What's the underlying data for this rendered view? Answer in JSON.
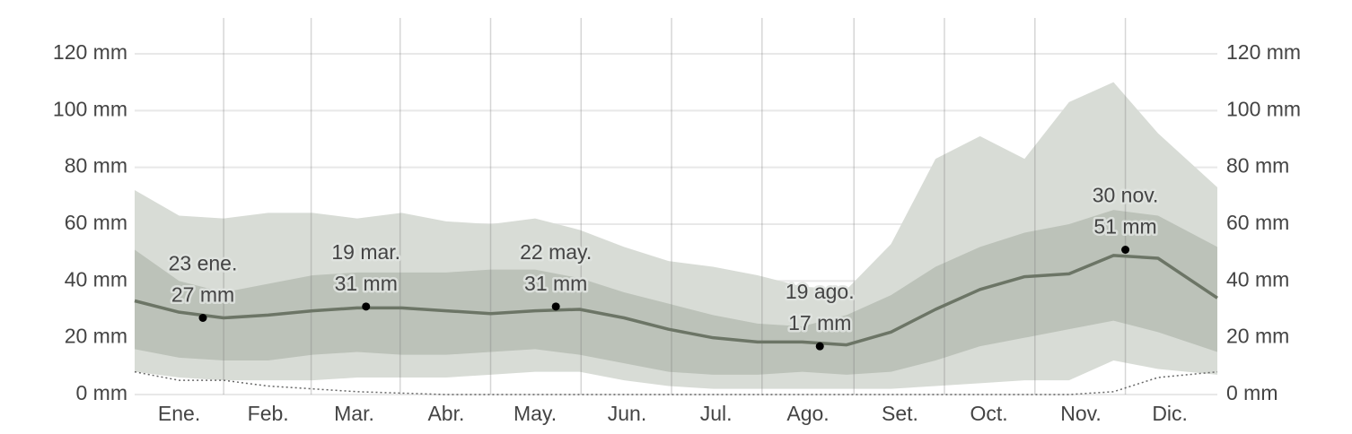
{
  "chart_data": {
    "type": "line",
    "x": [
      0,
      15,
      30,
      45,
      60,
      75,
      90,
      105,
      120,
      135,
      150,
      165,
      180,
      195,
      210,
      225,
      240,
      255,
      270,
      285,
      300,
      315,
      330,
      345,
      365
    ],
    "xlim": [
      0,
      365
    ],
    "xticks": [
      {
        "value": 15,
        "label": "Ene."
      },
      {
        "value": 45,
        "label": "Feb."
      },
      {
        "value": 74,
        "label": "Mar."
      },
      {
        "value": 105,
        "label": "Abr."
      },
      {
        "value": 135,
        "label": "May."
      },
      {
        "value": 166,
        "label": "Jun."
      },
      {
        "value": 196,
        "label": "Jul."
      },
      {
        "value": 227,
        "label": "Ago."
      },
      {
        "value": 258,
        "label": "Set."
      },
      {
        "value": 288,
        "label": "Oct."
      },
      {
        "value": 319,
        "label": "Nov."
      },
      {
        "value": 349,
        "label": "Dic."
      }
    ],
    "ylim": [
      0,
      120
    ],
    "yticks": [
      {
        "value": 0,
        "label": "0 mm"
      },
      {
        "value": 20,
        "label": "20 mm"
      },
      {
        "value": 40,
        "label": "40 mm"
      },
      {
        "value": 60,
        "label": "60 mm"
      },
      {
        "value": 80,
        "label": "80 mm"
      },
      {
        "value": 100,
        "label": "100 mm"
      },
      {
        "value": 120,
        "label": "120 mm"
      }
    ],
    "y2lim": [
      0,
      120
    ],
    "y2ticks": [
      {
        "value": 0,
        "label": "0 mm"
      },
      {
        "value": 20,
        "label": "20 mm"
      },
      {
        "value": 40,
        "label": "40 mm"
      },
      {
        "value": 60,
        "label": "60 mm"
      },
      {
        "value": 80,
        "label": "80 mm"
      },
      {
        "value": 100,
        "label": "100 mm"
      },
      {
        "value": 120,
        "label": "120 mm"
      }
    ],
    "grid": true,
    "bands": [
      {
        "color": "#d8dcd6",
        "upper": [
          72,
          63,
          62,
          64,
          64,
          62,
          64,
          61,
          60,
          62,
          58,
          52,
          47,
          45,
          42,
          38,
          37,
          53,
          83,
          91,
          83,
          103,
          110,
          92,
          73
        ],
        "lower": [
          8,
          6,
          5,
          5,
          5,
          6,
          6,
          6,
          7,
          8,
          8,
          5,
          3,
          2,
          2,
          2,
          2,
          2,
          3,
          4,
          5,
          5,
          12,
          9,
          7
        ]
      },
      {
        "color": "#bcc2b9",
        "upper": [
          51,
          40,
          36,
          39,
          42,
          43,
          43,
          43,
          44,
          44,
          41,
          36,
          32,
          28,
          25,
          24,
          28,
          35,
          45,
          52,
          57,
          60,
          65,
          63,
          52
        ],
        "lower": [
          16,
          13,
          12,
          12,
          14,
          15,
          14,
          14,
          15,
          16,
          14,
          11,
          8,
          7,
          7,
          8,
          7,
          8,
          12,
          17,
          20,
          23,
          26,
          22,
          15
        ]
      }
    ],
    "series": [
      {
        "color": "#6c7566",
        "style": "solid",
        "values": [
          33,
          29,
          27,
          28,
          29.5,
          30.5,
          30.5,
          29.5,
          28.5,
          29.5,
          30,
          27,
          23,
          20,
          18.5,
          18.5,
          17.5,
          22,
          30,
          37,
          41.5,
          42.5,
          49,
          48,
          34
        ]
      },
      {
        "color": "#666666",
        "style": "dotted",
        "values": [
          8,
          5,
          5,
          3,
          2,
          1,
          0.5,
          0,
          0,
          0,
          0,
          0,
          0,
          0,
          0,
          0,
          0,
          0,
          0,
          0,
          0,
          0,
          1,
          6,
          8
        ]
      }
    ],
    "annotations": [
      {
        "x": 23,
        "value": 27,
        "label": "23 ene.",
        "value_label": "27 mm"
      },
      {
        "x": 78,
        "value": 31,
        "label": "19 mar.",
        "value_label": "31 mm"
      },
      {
        "x": 142,
        "value": 31,
        "label": "22 may.",
        "value_label": "31 mm"
      },
      {
        "x": 231,
        "value": 17,
        "label": "19 ago.",
        "value_label": "17 mm"
      },
      {
        "x": 334,
        "value": 51,
        "label": "30 nov.",
        "value_label": "51 mm"
      }
    ]
  }
}
